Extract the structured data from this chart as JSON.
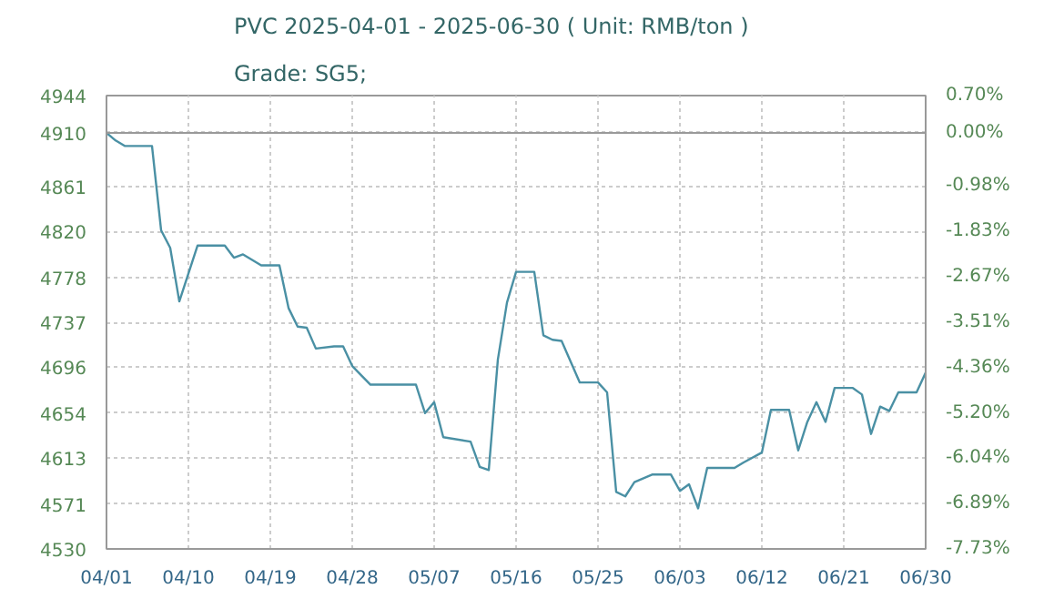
{
  "chart_data": {
    "type": "line",
    "title": "PVC 2025-04-01 - 2025-06-30    ( Unit: RMB/ton )",
    "subtitle": "Grade: SG5;",
    "x": [
      "2025-04-01",
      "2025-04-02",
      "2025-04-03",
      "2025-04-06",
      "2025-04-07",
      "2025-04-08",
      "2025-04-09",
      "2025-04-11",
      "2025-04-14",
      "2025-04-15",
      "2025-04-16",
      "2025-04-18",
      "2025-04-20",
      "2025-04-21",
      "2025-04-22",
      "2025-04-23",
      "2025-04-24",
      "2025-04-26",
      "2025-04-27",
      "2025-04-28",
      "2025-04-30",
      "2025-05-05",
      "2025-05-06",
      "2025-05-07",
      "2025-05-08",
      "2025-05-11",
      "2025-05-12",
      "2025-05-13",
      "2025-05-14",
      "2025-05-15",
      "2025-05-16",
      "2025-05-18",
      "2025-05-19",
      "2025-05-20",
      "2025-05-21",
      "2025-05-23",
      "2025-05-25",
      "2025-05-26",
      "2025-05-27",
      "2025-05-28",
      "2025-05-29",
      "2025-05-31",
      "2025-06-02",
      "2025-06-03",
      "2025-06-04",
      "2025-06-05",
      "2025-06-06",
      "2025-06-09",
      "2025-06-10",
      "2025-06-12",
      "2025-06-13",
      "2025-06-15",
      "2025-06-16",
      "2025-06-17",
      "2025-06-18",
      "2025-06-19",
      "2025-06-20",
      "2025-06-22",
      "2025-06-23",
      "2025-06-24",
      "2025-06-25",
      "2025-06-26",
      "2025-06-27",
      "2025-06-29",
      "2025-06-30"
    ],
    "series": [
      {
        "color": "#4a90a4",
        "values": [
          4910,
          4903,
          4898,
          4898,
          4821,
          4805,
          4756,
          4807,
          4807,
          4796,
          4799,
          4789,
          4789,
          4750,
          4733,
          4732,
          4713,
          4715,
          4715,
          4697,
          4680,
          4680,
          4654,
          4664,
          4632,
          4628,
          4605,
          4602,
          4703,
          4755,
          4783,
          4783,
          4725,
          4721,
          4720,
          4682,
          4682,
          4673,
          4582,
          4578,
          4591,
          4598,
          4598,
          4583,
          4589,
          4567,
          4604,
          4604,
          4609,
          4618,
          4657,
          4657,
          4620,
          4646,
          4664,
          4646,
          4677,
          4677,
          4671,
          4635,
          4660,
          4656,
          4673,
          4673,
          4691
        ]
      }
    ],
    "xlim": [
      "2025-04-01",
      "2025-06-30"
    ],
    "xticks": [
      {
        "value": "2025-04-01",
        "label": "04/01"
      },
      {
        "value": "2025-04-10",
        "label": "04/10"
      },
      {
        "value": "2025-04-19",
        "label": "04/19"
      },
      {
        "value": "2025-04-28",
        "label": "04/28"
      },
      {
        "value": "2025-05-07",
        "label": "05/07"
      },
      {
        "value": "2025-05-16",
        "label": "05/16"
      },
      {
        "value": "2025-05-25",
        "label": "05/25"
      },
      {
        "value": "2025-06-03",
        "label": "06/03"
      },
      {
        "value": "2025-06-12",
        "label": "06/12"
      },
      {
        "value": "2025-06-21",
        "label": "06/21"
      },
      {
        "value": "2025-06-30",
        "label": "06/30"
      }
    ],
    "ylim": [
      4530,
      4944
    ],
    "yticks": [
      4530,
      4571,
      4613,
      4654,
      4696,
      4737,
      4778,
      4820,
      4861,
      4910,
      4944
    ],
    "y2lim": [
      -7.73,
      0.7
    ],
    "y2ticks": [
      {
        "value": -7.73,
        "label": "-7.73%"
      },
      {
        "value": -6.89,
        "label": "-6.89%"
      },
      {
        "value": -6.04,
        "label": "-6.04%"
      },
      {
        "value": -5.2,
        "label": "-5.20%"
      },
      {
        "value": -4.36,
        "label": "-4.36%"
      },
      {
        "value": -3.51,
        "label": "-3.51%"
      },
      {
        "value": -2.67,
        "label": "-2.67%"
      },
      {
        "value": -1.83,
        "label": "-1.83%"
      },
      {
        "value": -0.98,
        "label": "-0.98%"
      },
      {
        "value": 0.0,
        "label": "0.00%"
      },
      {
        "value": 0.7,
        "label": "0.70%"
      }
    ],
    "ref_lines": [
      {
        "axis": "y",
        "value": 4910,
        "color": "#999999"
      }
    ],
    "grid": true
  }
}
